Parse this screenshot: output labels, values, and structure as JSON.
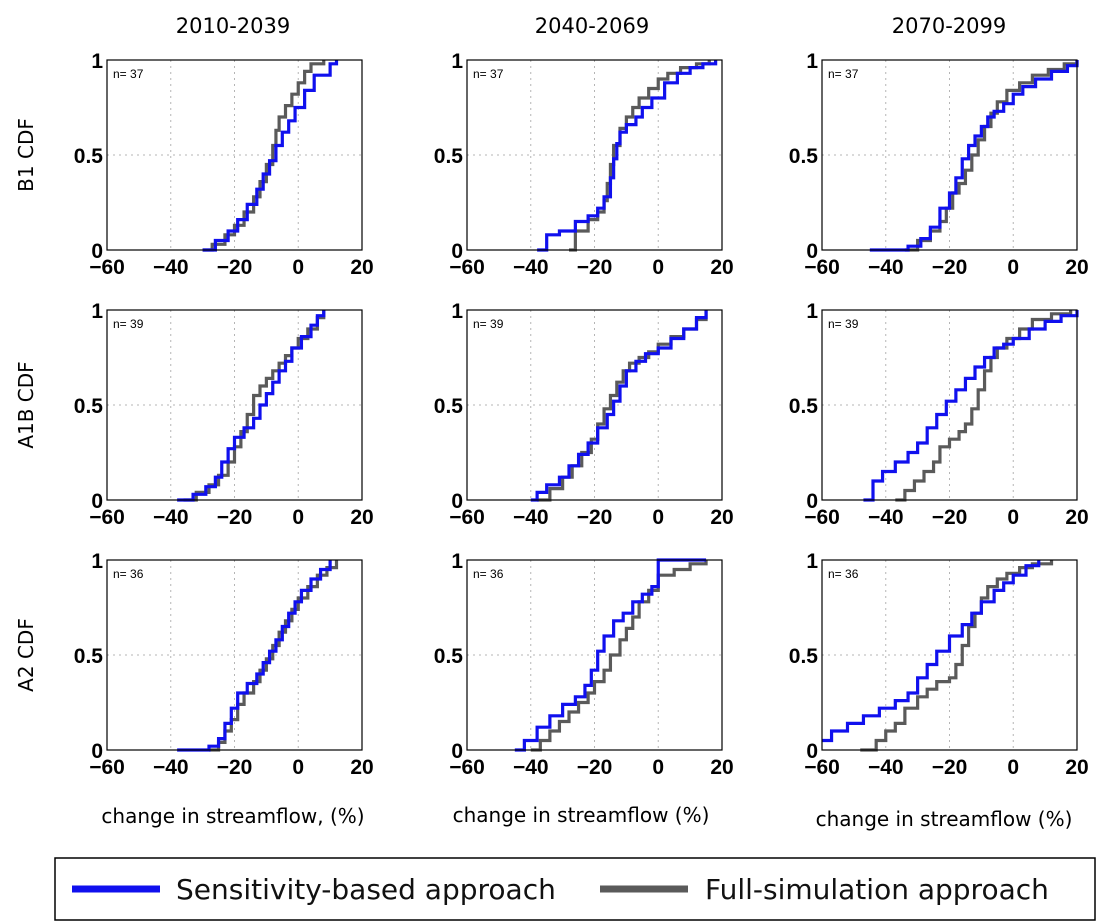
{
  "columns": [
    "2010-2039",
    "2040-2069",
    "2070-2099"
  ],
  "rows": [
    "B1 CDF",
    "A1B CDF",
    "A2 CDF"
  ],
  "xlabels": [
    "change in streamflow,  (%)",
    "change in streamflow (%)",
    "change in streamflow (%)"
  ],
  "legend": {
    "position": "bottom",
    "items": [
      {
        "label": "Sensitivity-based approach",
        "color": "#1010ee"
      },
      {
        "label": "Full-simulation approach",
        "color": "#5a5a5a"
      }
    ]
  },
  "chart_data": [
    {
      "type": "line",
      "step": true,
      "row": "B1 CDF",
      "column": "2010-2039",
      "annotation": "n= 37",
      "xlim": [
        -60,
        20
      ],
      "ylim": [
        0,
        1
      ],
      "xticks": [
        "-60",
        "-40",
        "-20",
        "0",
        "20"
      ],
      "yticks": [
        "0",
        "0.5",
        "1"
      ],
      "grid": true,
      "series": [
        {
          "name": "Sensitivity-based approach",
          "color": "#1010ee",
          "x": [
            -30,
            -26,
            -22,
            -19,
            -16,
            -13,
            -11,
            -9,
            -7,
            -5,
            -3,
            -1,
            2,
            5,
            10,
            12
          ],
          "y": [
            0,
            0.05,
            0.1,
            0.16,
            0.24,
            0.32,
            0.4,
            0.47,
            0.55,
            0.62,
            0.68,
            0.75,
            0.84,
            0.92,
            0.98,
            1
          ]
        },
        {
          "name": "Full-simulation approach",
          "color": "#5a5a5a",
          "x": [
            -30,
            -27,
            -23,
            -20,
            -17,
            -14,
            -12,
            -10,
            -8,
            -7,
            -6,
            -4,
            -2,
            0,
            2,
            4,
            8
          ],
          "y": [
            0,
            0.03,
            0.08,
            0.13,
            0.2,
            0.28,
            0.36,
            0.45,
            0.55,
            0.63,
            0.7,
            0.76,
            0.82,
            0.88,
            0.94,
            0.98,
            1
          ]
        }
      ]
    },
    {
      "type": "line",
      "step": true,
      "row": "B1 CDF",
      "column": "2040-2069",
      "annotation": "n= 37",
      "xlim": [
        -60,
        20
      ],
      "ylim": [
        0,
        1
      ],
      "xticks": [
        "-60",
        "-40",
        "-20",
        "0",
        "20"
      ],
      "yticks": [
        "0",
        "0.5",
        "1"
      ],
      "grid": true,
      "series": [
        {
          "name": "Sensitivity-based approach",
          "color": "#1010ee",
          "x": [
            -38,
            -35,
            -31,
            -26,
            -22,
            -19,
            -17,
            -15,
            -14,
            -13,
            -12,
            -10,
            -7,
            -5,
            -2,
            2,
            6,
            10,
            14,
            18
          ],
          "y": [
            0,
            0.08,
            0.1,
            0.15,
            0.18,
            0.22,
            0.28,
            0.38,
            0.48,
            0.56,
            0.62,
            0.66,
            0.7,
            0.75,
            0.8,
            0.88,
            0.93,
            0.96,
            0.98,
            1
          ]
        },
        {
          "name": "Full-simulation approach",
          "color": "#5a5a5a",
          "x": [
            -28,
            -26,
            -22,
            -19,
            -17,
            -16,
            -15,
            -14,
            -12,
            -10,
            -8,
            -6,
            -3,
            0,
            3,
            7,
            12,
            16
          ],
          "y": [
            0,
            0.1,
            0.16,
            0.2,
            0.26,
            0.35,
            0.45,
            0.55,
            0.64,
            0.7,
            0.75,
            0.8,
            0.85,
            0.9,
            0.93,
            0.96,
            0.98,
            1
          ]
        }
      ]
    },
    {
      "type": "line",
      "step": true,
      "row": "B1 CDF",
      "column": "2070-2099",
      "annotation": "n= 37",
      "xlim": [
        -60,
        20
      ],
      "ylim": [
        0,
        1
      ],
      "xticks": [
        "-60",
        "-40",
        "-20",
        "0",
        "20"
      ],
      "yticks": [
        "0",
        "0.5",
        "1"
      ],
      "grid": true,
      "series": [
        {
          "name": "Sensitivity-based approach",
          "color": "#1010ee",
          "x": [
            -45,
            -33,
            -29,
            -26,
            -23,
            -20,
            -18,
            -16,
            -14,
            -12,
            -10,
            -8,
            -6,
            -3,
            0,
            3,
            7,
            12,
            17,
            20
          ],
          "y": [
            0,
            0.02,
            0.06,
            0.12,
            0.22,
            0.3,
            0.38,
            0.48,
            0.55,
            0.6,
            0.65,
            0.7,
            0.73,
            0.77,
            0.82,
            0.86,
            0.9,
            0.94,
            0.97,
            1
          ]
        },
        {
          "name": "Full-simulation approach",
          "color": "#5a5a5a",
          "x": [
            -34,
            -30,
            -26,
            -23,
            -21,
            -19,
            -17,
            -15,
            -13,
            -11,
            -9,
            -7,
            -5,
            -2,
            2,
            6,
            11,
            16,
            20
          ],
          "y": [
            0,
            0.05,
            0.1,
            0.15,
            0.22,
            0.3,
            0.35,
            0.42,
            0.5,
            0.58,
            0.65,
            0.72,
            0.78,
            0.84,
            0.88,
            0.92,
            0.95,
            0.98,
            1
          ]
        }
      ]
    },
    {
      "type": "line",
      "step": true,
      "row": "A1B CDF",
      "column": "2010-2039",
      "annotation": "n= 39",
      "xlim": [
        -60,
        20
      ],
      "ylim": [
        0,
        1
      ],
      "xticks": [
        "-60",
        "-40",
        "-20",
        "0",
        "20"
      ],
      "yticks": [
        "0",
        "0.5",
        "1"
      ],
      "grid": true,
      "series": [
        {
          "name": "Sensitivity-based approach",
          "color": "#1010ee",
          "x": [
            -38,
            -33,
            -29,
            -26,
            -24,
            -22,
            -20,
            -17,
            -14,
            -12,
            -10,
            -8,
            -6,
            -4,
            -2,
            1,
            4,
            6,
            8
          ],
          "y": [
            0,
            0.03,
            0.07,
            0.12,
            0.2,
            0.27,
            0.33,
            0.38,
            0.43,
            0.5,
            0.56,
            0.62,
            0.68,
            0.73,
            0.8,
            0.86,
            0.92,
            0.97,
            1
          ]
        },
        {
          "name": "Full-simulation approach",
          "color": "#5a5a5a",
          "x": [
            -36,
            -32,
            -28,
            -25,
            -22,
            -20,
            -18,
            -16,
            -14,
            -12,
            -10,
            -8,
            -6,
            -4,
            -2,
            0,
            3,
            6,
            8
          ],
          "y": [
            0,
            0.04,
            0.08,
            0.13,
            0.2,
            0.28,
            0.36,
            0.45,
            0.55,
            0.6,
            0.64,
            0.68,
            0.72,
            0.76,
            0.8,
            0.85,
            0.9,
            0.96,
            1
          ]
        }
      ]
    },
    {
      "type": "line",
      "step": true,
      "row": "A1B CDF",
      "column": "2040-2069",
      "annotation": "n= 39",
      "xlim": [
        -60,
        20
      ],
      "ylim": [
        0,
        1
      ],
      "xticks": [
        "-60",
        "-40",
        "-20",
        "0",
        "20"
      ],
      "yticks": [
        "0",
        "0.5",
        "1"
      ],
      "grid": true,
      "series": [
        {
          "name": "Sensitivity-based approach",
          "color": "#1010ee",
          "x": [
            -40,
            -38,
            -35,
            -31,
            -28,
            -25,
            -22,
            -19,
            -16,
            -14,
            -12,
            -10,
            -7,
            -4,
            0,
            4,
            8,
            12,
            15
          ],
          "y": [
            0,
            0.04,
            0.08,
            0.12,
            0.18,
            0.24,
            0.3,
            0.38,
            0.45,
            0.52,
            0.6,
            0.68,
            0.73,
            0.77,
            0.8,
            0.85,
            0.9,
            0.96,
            1
          ]
        },
        {
          "name": "Full-simulation approach",
          "color": "#5a5a5a",
          "x": [
            -38,
            -34,
            -30,
            -27,
            -24,
            -21,
            -19,
            -17,
            -15,
            -13,
            -11,
            -9,
            -6,
            -3,
            0,
            4,
            8,
            12,
            15
          ],
          "y": [
            0,
            0.06,
            0.12,
            0.18,
            0.25,
            0.32,
            0.4,
            0.48,
            0.55,
            0.62,
            0.68,
            0.72,
            0.75,
            0.78,
            0.82,
            0.86,
            0.9,
            0.95,
            1
          ]
        }
      ]
    },
    {
      "type": "line",
      "step": true,
      "row": "A1B CDF",
      "column": "2070-2099",
      "annotation": "n= 39",
      "xlim": [
        -60,
        20
      ],
      "ylim": [
        0,
        1
      ],
      "xticks": [
        "-60",
        "-40",
        "-20",
        "0",
        "20"
      ],
      "yticks": [
        "0",
        "0.5",
        "1"
      ],
      "grid": true,
      "series": [
        {
          "name": "Sensitivity-based approach",
          "color": "#1010ee",
          "x": [
            -47,
            -44,
            -41,
            -37,
            -33,
            -30,
            -27,
            -24,
            -21,
            -18,
            -15,
            -12,
            -9,
            -6,
            -3,
            0,
            5,
            10,
            15,
            20
          ],
          "y": [
            0,
            0.1,
            0.15,
            0.2,
            0.25,
            0.3,
            0.38,
            0.45,
            0.52,
            0.58,
            0.64,
            0.7,
            0.75,
            0.8,
            0.82,
            0.85,
            0.9,
            0.94,
            0.97,
            1
          ]
        },
        {
          "name": "Full-simulation approach",
          "color": "#5a5a5a",
          "x": [
            -37,
            -34,
            -31,
            -28,
            -25,
            -23,
            -20,
            -17,
            -15,
            -13,
            -11,
            -9,
            -7,
            -5,
            -2,
            2,
            6,
            12,
            18
          ],
          "y": [
            0,
            0.05,
            0.1,
            0.15,
            0.2,
            0.28,
            0.32,
            0.36,
            0.4,
            0.48,
            0.58,
            0.68,
            0.75,
            0.8,
            0.85,
            0.9,
            0.95,
            0.98,
            1
          ]
        }
      ]
    },
    {
      "type": "line",
      "step": true,
      "row": "A2 CDF",
      "column": "2010-2039",
      "annotation": "n= 36",
      "xlim": [
        -60,
        20
      ],
      "ylim": [
        0,
        1
      ],
      "xticks": [
        "-60",
        "-40",
        "-20",
        "0",
        "20"
      ],
      "yticks": [
        "0",
        "0.5",
        "1"
      ],
      "grid": true,
      "series": [
        {
          "name": "Sensitivity-based approach",
          "color": "#1010ee",
          "x": [
            -38,
            -28,
            -25,
            -23,
            -21,
            -19,
            -16,
            -13,
            -11,
            -9,
            -7,
            -5,
            -3,
            -1,
            1,
            4,
            7,
            10
          ],
          "y": [
            0,
            0.02,
            0.06,
            0.14,
            0.22,
            0.3,
            0.35,
            0.4,
            0.46,
            0.52,
            0.58,
            0.65,
            0.72,
            0.78,
            0.84,
            0.9,
            0.95,
            1
          ]
        },
        {
          "name": "Full-simulation approach",
          "color": "#5a5a5a",
          "x": [
            -28,
            -25,
            -23,
            -21,
            -19,
            -17,
            -14,
            -12,
            -10,
            -8,
            -6,
            -4,
            -2,
            0,
            3,
            6,
            9,
            12
          ],
          "y": [
            0,
            0.04,
            0.1,
            0.16,
            0.24,
            0.3,
            0.36,
            0.42,
            0.48,
            0.55,
            0.62,
            0.68,
            0.74,
            0.8,
            0.86,
            0.92,
            0.96,
            1
          ]
        }
      ]
    },
    {
      "type": "line",
      "step": true,
      "row": "A2 CDF",
      "column": "2040-2069",
      "annotation": "n= 36",
      "xlim": [
        -60,
        20
      ],
      "ylim": [
        0,
        1
      ],
      "xticks": [
        "-60",
        "-40",
        "-20",
        "0",
        "20"
      ],
      "yticks": [
        "0",
        "0.5",
        "1"
      ],
      "grid": true,
      "series": [
        {
          "name": "Sensitivity-based approach",
          "color": "#1010ee",
          "x": [
            -45,
            -42,
            -38,
            -34,
            -30,
            -26,
            -23,
            -21,
            -19,
            -17,
            -14,
            -11,
            -8,
            -5,
            -2,
            0,
            5,
            10,
            15
          ],
          "y": [
            0,
            0.05,
            0.12,
            0.18,
            0.24,
            0.28,
            0.34,
            0.42,
            0.52,
            0.6,
            0.68,
            0.72,
            0.78,
            0.82,
            0.86,
            1,
            1,
            1,
            1
          ]
        },
        {
          "name": "Full-simulation approach",
          "color": "#5a5a5a",
          "x": [
            -40,
            -37,
            -34,
            -31,
            -28,
            -25,
            -22,
            -20,
            -17,
            -15,
            -12,
            -10,
            -8,
            -6,
            -3,
            0,
            5,
            10,
            15
          ],
          "y": [
            0,
            0.05,
            0.1,
            0.15,
            0.2,
            0.25,
            0.3,
            0.36,
            0.42,
            0.5,
            0.58,
            0.64,
            0.7,
            0.78,
            0.84,
            0.92,
            0.95,
            0.98,
            1
          ]
        }
      ]
    },
    {
      "type": "line",
      "step": true,
      "row": "A2 CDF",
      "column": "2070-2099",
      "annotation": "n= 36",
      "xlim": [
        -60,
        20
      ],
      "ylim": [
        0,
        1
      ],
      "xticks": [
        "-60",
        "-40",
        "-20",
        "0",
        "20"
      ],
      "yticks": [
        "0",
        "0.5",
        "1"
      ],
      "grid": true,
      "series": [
        {
          "name": "Sensitivity-based approach",
          "color": "#1010ee",
          "x": [
            -60,
            -57,
            -52,
            -47,
            -42,
            -37,
            -33,
            -30,
            -27,
            -24,
            -20,
            -16,
            -13,
            -10,
            -6,
            -3,
            0,
            4,
            8
          ],
          "y": [
            0.05,
            0.1,
            0.14,
            0.18,
            0.22,
            0.26,
            0.3,
            0.38,
            0.45,
            0.52,
            0.6,
            0.66,
            0.72,
            0.78,
            0.84,
            0.88,
            0.92,
            0.97,
            1
          ]
        },
        {
          "name": "Full-simulation approach",
          "color": "#5a5a5a",
          "x": [
            -48,
            -43,
            -40,
            -37,
            -34,
            -30,
            -27,
            -24,
            -20,
            -18,
            -16,
            -14,
            -12,
            -10,
            -8,
            -5,
            -2,
            2,
            6,
            12
          ],
          "y": [
            0,
            0.05,
            0.1,
            0.14,
            0.22,
            0.28,
            0.32,
            0.36,
            0.38,
            0.45,
            0.55,
            0.65,
            0.72,
            0.8,
            0.86,
            0.9,
            0.93,
            0.96,
            0.98,
            1
          ]
        }
      ]
    }
  ]
}
